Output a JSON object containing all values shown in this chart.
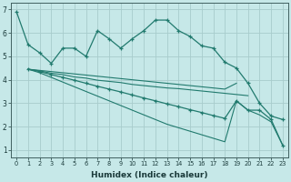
{
  "xlabel": "Humidex (Indice chaleur)",
  "bg_color": "#c6e8e8",
  "grid_color": "#a8cccc",
  "line_color": "#217a6e",
  "xlim": [
    -0.5,
    23.5
  ],
  "ylim": [
    0.7,
    7.3
  ],
  "yticks": [
    1,
    2,
    3,
    4,
    5,
    6,
    7
  ],
  "xticks": [
    0,
    1,
    2,
    3,
    4,
    5,
    6,
    7,
    8,
    9,
    10,
    11,
    12,
    13,
    14,
    15,
    16,
    17,
    18,
    19,
    20,
    21,
    22,
    23
  ],
  "line1_x": [
    0,
    1,
    2,
    3,
    4,
    5,
    6,
    7,
    8,
    9,
    10,
    11,
    12,
    13,
    14,
    15,
    16,
    17,
    18,
    19,
    20,
    21,
    22,
    23
  ],
  "line1_y": [
    6.9,
    5.5,
    5.15,
    4.7,
    5.35,
    5.35,
    5.0,
    6.1,
    5.75,
    5.35,
    5.75,
    6.1,
    6.55,
    6.55,
    6.1,
    5.85,
    5.45,
    5.35,
    4.75,
    4.5,
    3.85,
    3.0,
    2.45,
    2.3
  ],
  "line2_x": [
    1,
    2,
    3,
    4,
    5,
    6,
    7,
    8,
    9,
    10,
    11,
    12,
    13,
    14,
    15,
    16,
    17,
    18,
    19
  ],
  "line2_y": [
    4.45,
    4.4,
    4.35,
    4.3,
    4.25,
    4.2,
    4.15,
    4.1,
    4.05,
    4.0,
    3.95,
    3.9,
    3.85,
    3.8,
    3.75,
    3.7,
    3.65,
    3.6,
    3.85
  ],
  "line3_x": [
    1,
    2,
    3,
    4,
    5,
    6,
    7,
    8,
    9,
    10,
    11,
    12,
    13,
    14,
    15,
    16,
    17,
    18,
    19,
    20
  ],
  "line3_y": [
    4.45,
    4.38,
    4.28,
    4.22,
    4.12,
    4.07,
    3.98,
    3.93,
    3.88,
    3.8,
    3.75,
    3.7,
    3.65,
    3.62,
    3.57,
    3.52,
    3.47,
    3.42,
    3.37,
    3.32
  ],
  "line4_x": [
    1,
    2,
    3,
    4,
    5,
    6,
    7,
    8,
    9,
    10,
    11,
    12,
    13,
    14,
    15,
    16,
    17,
    18,
    19,
    20,
    21,
    22,
    23
  ],
  "line4_y": [
    4.45,
    4.35,
    4.22,
    4.1,
    3.98,
    3.85,
    3.72,
    3.6,
    3.48,
    3.35,
    3.22,
    3.1,
    2.97,
    2.85,
    2.72,
    2.6,
    2.47,
    2.35,
    3.1,
    2.7,
    2.7,
    2.3,
    1.2
  ],
  "line5_x": [
    1,
    2,
    3,
    4,
    5,
    6,
    7,
    8,
    9,
    10,
    11,
    12,
    13,
    14,
    15,
    16,
    17,
    18,
    19,
    20,
    21,
    22,
    23
  ],
  "line5_y": [
    4.45,
    4.3,
    4.1,
    3.9,
    3.7,
    3.5,
    3.3,
    3.1,
    2.9,
    2.7,
    2.5,
    2.3,
    2.1,
    1.95,
    1.8,
    1.65,
    1.5,
    1.35,
    3.1,
    2.7,
    2.5,
    2.2,
    1.2
  ]
}
